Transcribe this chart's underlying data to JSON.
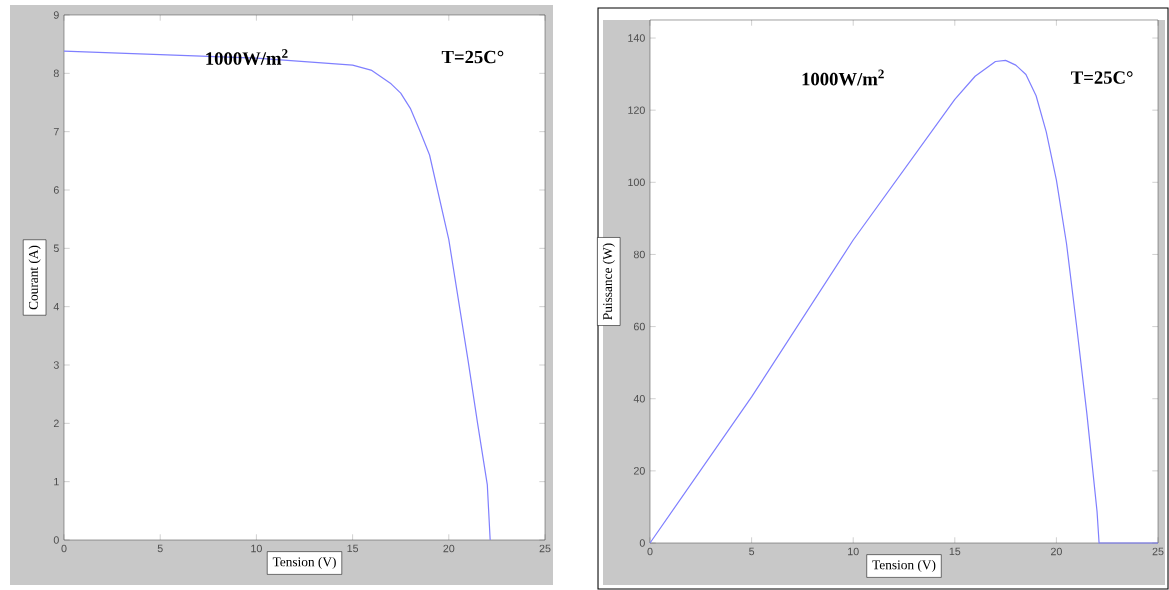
{
  "chart_data": [
    {
      "type": "line",
      "xlabel": "Tension (V)",
      "ylabel": "Courant (A)",
      "annotations": [
        "1000W/m$^{2}$",
        "T=25C°"
      ],
      "xlim": [
        0,
        25
      ],
      "ylim": [
        0,
        9
      ],
      "xticks": [
        0,
        5,
        10,
        15,
        20,
        25
      ],
      "yticks": [
        0,
        1,
        2,
        3,
        4,
        5,
        6,
        7,
        8,
        9
      ],
      "x": [
        0,
        5,
        10,
        15,
        16,
        17,
        17.5,
        18,
        18.5,
        19,
        20,
        21,
        21.5,
        22,
        22.15
      ],
      "series": [
        {
          "color": "#7f7fff",
          "values": [
            8.38,
            8.32,
            8.26,
            8.14,
            8.05,
            7.82,
            7.66,
            7.4,
            7.01,
            6.6,
            5.15,
            3.08,
            1.99,
            0.95,
            0
          ]
        }
      ]
    },
    {
      "type": "line",
      "xlabel": "Tension (V)",
      "ylabel": "Puissance  (W)",
      "annotations": [
        "1000W/m$^{2}$",
        "T=25C°"
      ],
      "xlim": [
        0,
        25
      ],
      "ylim": [
        0,
        145
      ],
      "xticks": [
        0,
        5,
        10,
        15,
        20,
        25
      ],
      "yticks": [
        0,
        20,
        40,
        60,
        80,
        100,
        120,
        140
      ],
      "x": [
        0,
        5,
        10,
        15,
        16,
        17,
        17.5,
        18,
        18.5,
        19,
        19.5,
        20,
        20.5,
        21,
        21.5,
        22,
        22.1,
        25
      ],
      "series": [
        {
          "color": "#7f7fff",
          "values": [
            0,
            40.5,
            84,
            123,
            129.4,
            133.5,
            133.8,
            132.5,
            129.9,
            124,
            114,
            100.6,
            82.9,
            59.9,
            35.8,
            8.7,
            0,
            0
          ]
        }
      ]
    }
  ]
}
